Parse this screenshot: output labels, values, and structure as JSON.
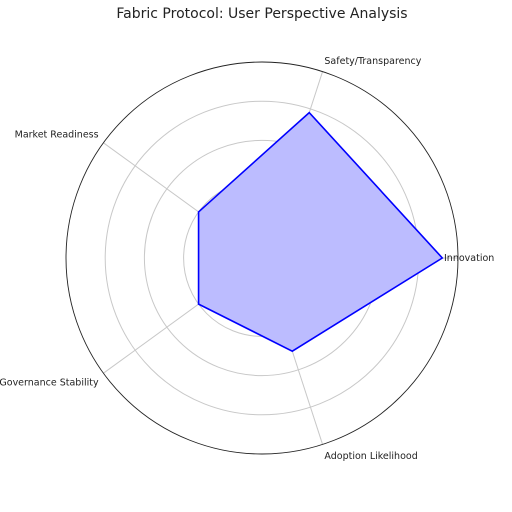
{
  "chart_data": {
    "type": "radar",
    "title": "Fabric Protocol: User Perspective Analysis",
    "categories": [
      "Innovation",
      "Safety/Transparency",
      "Market Readiness",
      "Governance Stability",
      "Adoption Likelihood"
    ],
    "series": [
      {
        "values": [
          0.92,
          0.78,
          0.4,
          0.4,
          0.5
        ]
      }
    ],
    "rlim": [
      0,
      1
    ],
    "grid": true,
    "colors": {
      "line": "#0000ff",
      "fill": "#bcbcff"
    }
  }
}
